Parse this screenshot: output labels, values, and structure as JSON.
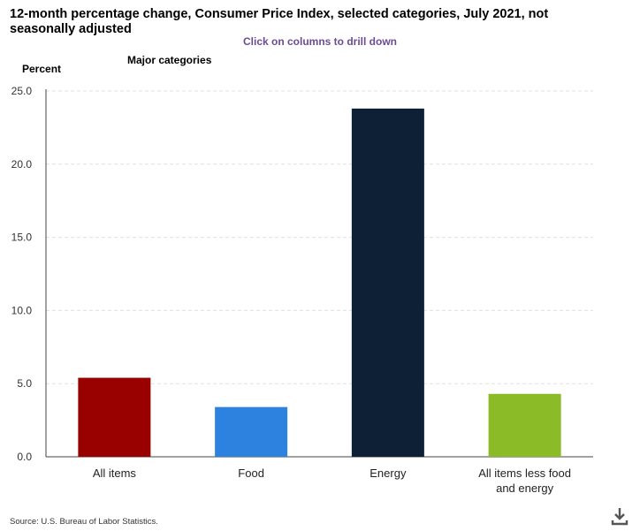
{
  "header": {
    "title": "12-month percentage change, Consumer Price Index, selected categories, July 2021, not seasonally adjusted",
    "drilldown_hint": "Click on columns to drill down",
    "section_label": "Major categories"
  },
  "footer": {
    "source": "Source: U.S. Bureau of Labor Statistics."
  },
  "chart_data": {
    "type": "bar",
    "title": "12-month percentage change, Consumer Price Index, selected categories, July 2021, not seasonally adjusted",
    "ylabel": "Percent",
    "xlabel": "",
    "categories": [
      "All items",
      "Food",
      "Energy",
      "All items less food and energy"
    ],
    "values": [
      5.4,
      3.4,
      23.8,
      4.3
    ],
    "colors": [
      "#990000",
      "#2e82df",
      "#0d2036",
      "#8bbb26"
    ],
    "ylim": [
      0,
      25
    ],
    "yticks": [
      "0.0",
      "5.0",
      "10.0",
      "15.0",
      "20.0",
      "25.0"
    ],
    "grid": true,
    "legend": "none"
  },
  "icons": {
    "download": "download-icon"
  }
}
